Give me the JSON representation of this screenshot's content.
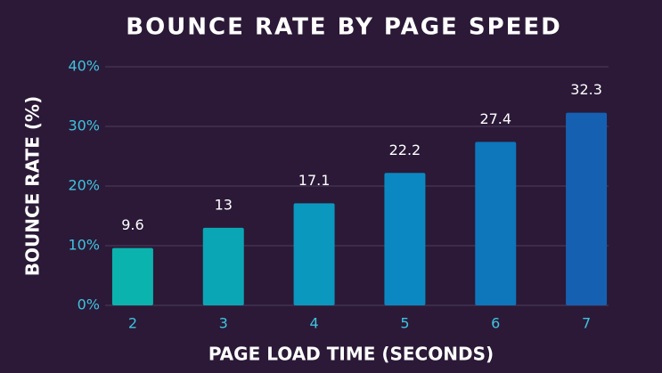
{
  "chart_data": {
    "type": "bar",
    "title": "BOUNCE RATE BY PAGE SPEED",
    "x_label": "PAGE LOAD TIME (SECONDS)",
    "y_label": "BOUNCE RATE (%)",
    "categories": [
      "2",
      "3",
      "4",
      "5",
      "6",
      "7"
    ],
    "values": [
      9.6,
      13,
      17.1,
      22.2,
      27.4,
      32.3
    ],
    "colors": [
      "#0bb3ae",
      "#0aa6b6",
      "#0b98bf",
      "#0b88c2",
      "#0e76bb",
      "#1660b2"
    ],
    "ylim": [
      0,
      40
    ],
    "yticks": [
      {
        "value": 0,
        "label": "0%"
      },
      {
        "value": 10,
        "label": "10%"
      },
      {
        "value": 20,
        "label": "20%"
      },
      {
        "value": 30,
        "label": "30%"
      },
      {
        "value": 40,
        "label": "40%"
      }
    ],
    "grid": true
  }
}
